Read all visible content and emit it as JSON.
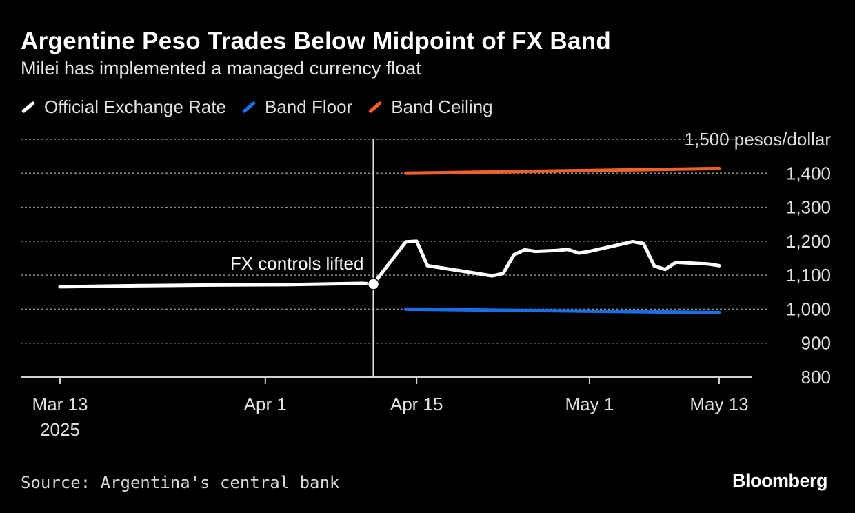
{
  "title": "Argentine Peso Trades Below Midpoint of FX Band",
  "subtitle": "Milei has implemented a managed currency float",
  "source": "Source: Argentina's central bank",
  "logo": "Bloomberg",
  "legend": [
    {
      "label": "Official Exchange Rate",
      "color": "#ffffff"
    },
    {
      "label": "Band Floor",
      "color": "#1a6fe8"
    },
    {
      "label": "Band Ceiling",
      "color": "#f0602a"
    }
  ],
  "chart_data": {
    "type": "line",
    "ylim": [
      800,
      1500
    ],
    "yticks": [
      {
        "value": 800,
        "label": "800"
      },
      {
        "value": 900,
        "label": "900"
      },
      {
        "value": 1000,
        "label": "1,000"
      },
      {
        "value": 1100,
        "label": "1,100"
      },
      {
        "value": 1200,
        "label": "1,200"
      },
      {
        "value": 1300,
        "label": "1,300"
      },
      {
        "value": 1400,
        "label": "1,400"
      },
      {
        "value": 1500,
        "label": "1,500 pesos/dollar"
      }
    ],
    "xlim": [
      "2025-03-10",
      "2025-05-16"
    ],
    "xticks": [
      {
        "date": "2025-03-13",
        "label": "Mar 13",
        "sublabel": "2025"
      },
      {
        "date": "2025-04-01",
        "label": "Apr 1",
        "sublabel": ""
      },
      {
        "date": "2025-04-15",
        "label": "Apr 15",
        "sublabel": ""
      },
      {
        "date": "2025-05-01",
        "label": "May 1",
        "sublabel": ""
      },
      {
        "date": "2025-05-13",
        "label": "May 13",
        "sublabel": ""
      }
    ],
    "grid": true,
    "annotation": {
      "date": "2025-04-11",
      "value": 1074,
      "text": "FX controls lifted"
    },
    "series": [
      {
        "name": "Official Exchange Rate",
        "color": "#ffffff",
        "points": [
          [
            "2025-03-13",
            1066
          ],
          [
            "2025-03-20",
            1069
          ],
          [
            "2025-03-27",
            1071
          ],
          [
            "2025-04-03",
            1072
          ],
          [
            "2025-04-10",
            1076
          ],
          [
            "2025-04-11",
            1074
          ],
          [
            "2025-04-14",
            1198
          ],
          [
            "2025-04-15",
            1200
          ],
          [
            "2025-04-16",
            1128
          ],
          [
            "2025-04-22",
            1098
          ],
          [
            "2025-04-23",
            1105
          ],
          [
            "2025-04-24",
            1160
          ],
          [
            "2025-04-25",
            1175
          ],
          [
            "2025-04-26",
            1170
          ],
          [
            "2025-04-28",
            1173
          ],
          [
            "2025-04-29",
            1176
          ],
          [
            "2025-04-30",
            1165
          ],
          [
            "2025-05-01",
            1170
          ],
          [
            "2025-05-05",
            1199
          ],
          [
            "2025-05-06",
            1193
          ],
          [
            "2025-05-07",
            1127
          ],
          [
            "2025-05-08",
            1117
          ],
          [
            "2025-05-09",
            1138
          ],
          [
            "2025-05-12",
            1133
          ],
          [
            "2025-05-13",
            1128
          ]
        ]
      },
      {
        "name": "Band Floor",
        "color": "#1a6fe8",
        "points": [
          [
            "2025-04-14",
            1000
          ],
          [
            "2025-05-13",
            990
          ]
        ]
      },
      {
        "name": "Band Ceiling",
        "color": "#f0602a",
        "points": [
          [
            "2025-04-14",
            1400
          ],
          [
            "2025-05-13",
            1414
          ]
        ]
      }
    ]
  }
}
